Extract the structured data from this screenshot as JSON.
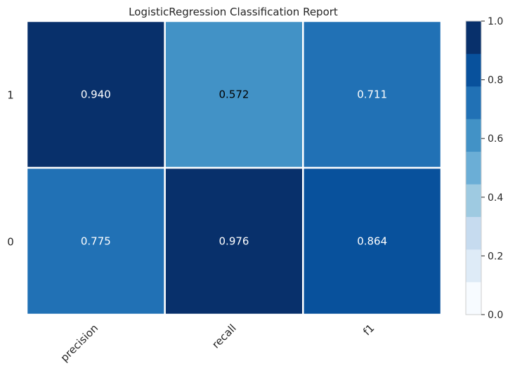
{
  "chart_data": {
    "type": "heatmap",
    "title": "LogisticRegression Classification Report",
    "xlabel": "",
    "ylabel": "",
    "x_categories": [
      "precision",
      "recall",
      "f1"
    ],
    "y_categories": [
      "1",
      "0"
    ],
    "values": [
      [
        0.94,
        0.572,
        0.711
      ],
      [
        0.775,
        0.976,
        0.864
      ]
    ],
    "value_labels": [
      [
        "0.940",
        "0.572",
        "0.711"
      ],
      [
        "0.775",
        "0.976",
        "0.864"
      ]
    ],
    "colorbar": {
      "range": [
        0.0,
        1.0
      ],
      "tick_labels": [
        "0.0",
        "0.2",
        "0.4",
        "0.6",
        "0.8",
        "1.0"
      ],
      "colors": [
        "#f7fbff",
        "#deebf7",
        "#c6dbef",
        "#9ecae1",
        "#6baed6",
        "#4292c6",
        "#2171b5",
        "#08519c",
        "#08306b"
      ]
    }
  }
}
